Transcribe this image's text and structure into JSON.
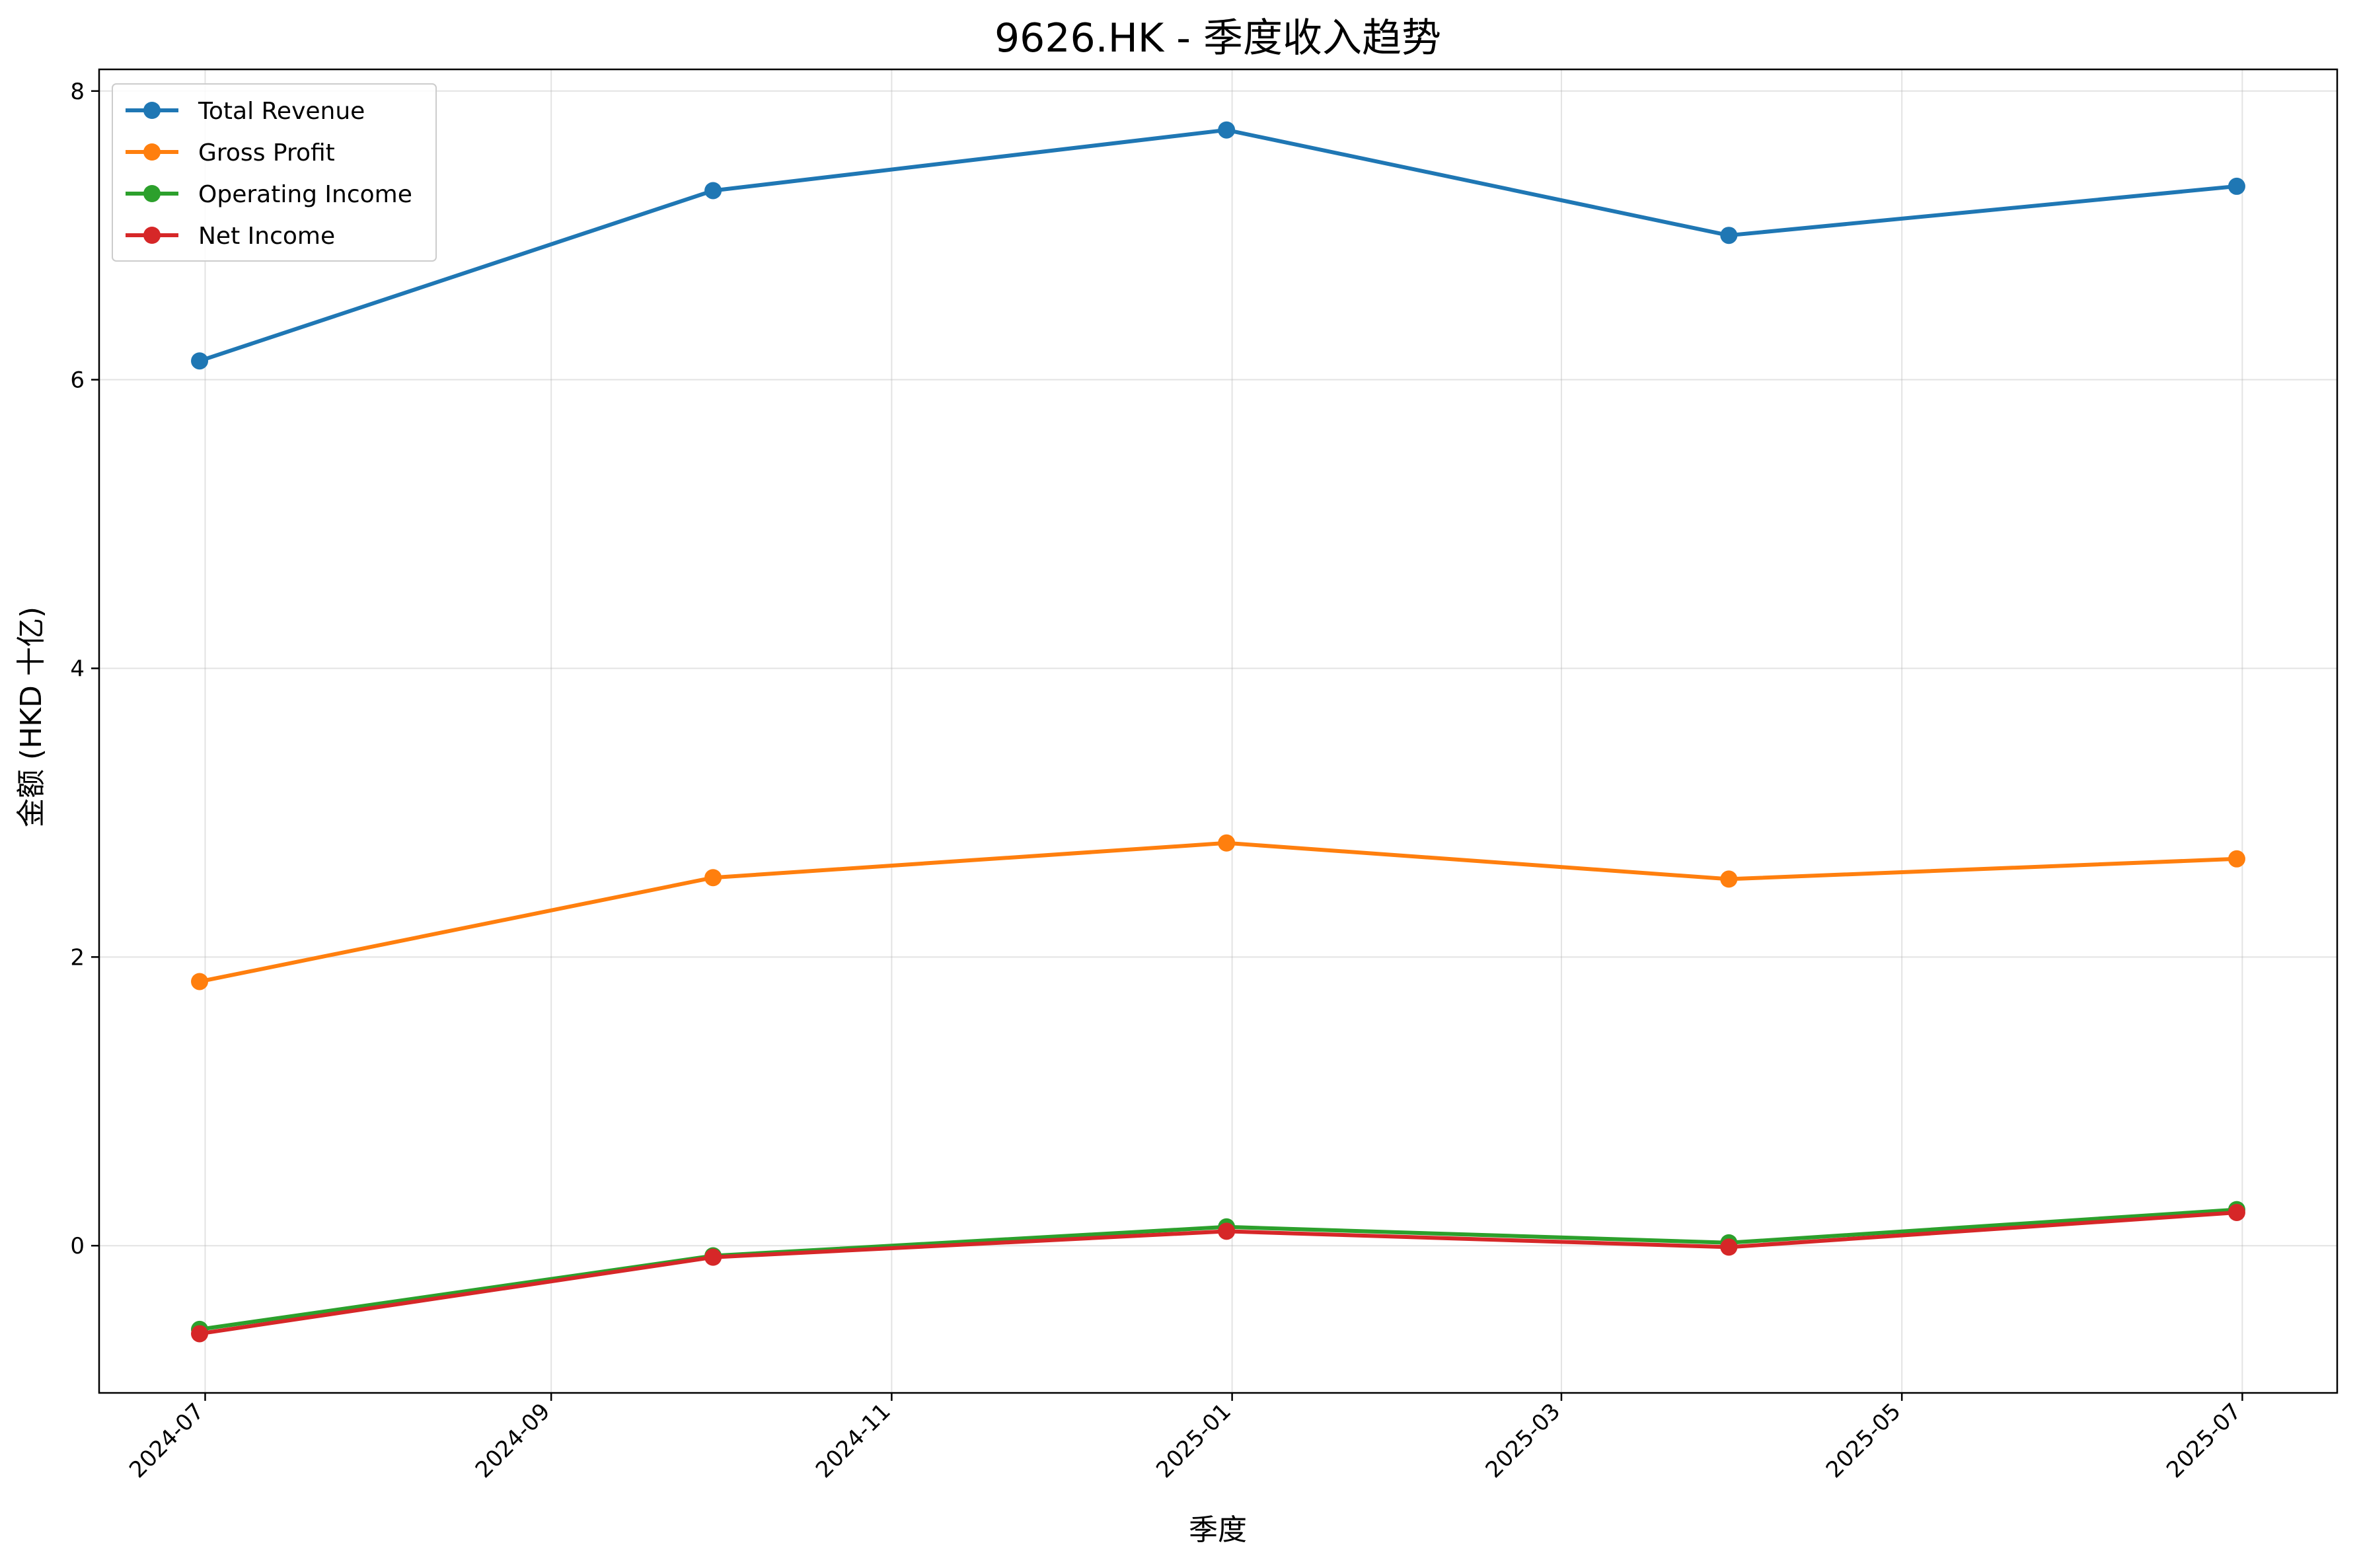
{
  "chart_data": {
    "type": "line",
    "title": "9626.HK - 季度收入趋势",
    "xlabel": "季度",
    "ylabel": "金额 (HKD 十亿)",
    "x": [
      "2024-06-30",
      "2024-09-30",
      "2024-12-31",
      "2025-03-31",
      "2025-06-30"
    ],
    "x_ticks": [
      "2024-07",
      "2024-09",
      "2024-11",
      "2025-01",
      "2025-03",
      "2025-05",
      "2025-07"
    ],
    "y_ticks": [
      0,
      2,
      4,
      6,
      8
    ],
    "xlim": [
      "2024-06-12",
      "2025-07-18"
    ],
    "ylim": [
      -1.02,
      8.15
    ],
    "grid": true,
    "legend_position": "top-left",
    "series": [
      {
        "name": "Total Revenue",
        "color": "#1f77b4",
        "values": [
          6.13,
          7.31,
          7.73,
          7.0,
          7.34
        ]
      },
      {
        "name": "Gross Profit",
        "color": "#ff7f0e",
        "values": [
          1.83,
          2.55,
          2.79,
          2.54,
          2.68
        ]
      },
      {
        "name": "Operating Income",
        "color": "#2ca02c",
        "values": [
          -0.58,
          -0.07,
          0.13,
          0.02,
          0.25
        ]
      },
      {
        "name": "Net Income",
        "color": "#d62728",
        "values": [
          -0.61,
          -0.08,
          0.1,
          -0.01,
          0.23
        ]
      }
    ]
  }
}
